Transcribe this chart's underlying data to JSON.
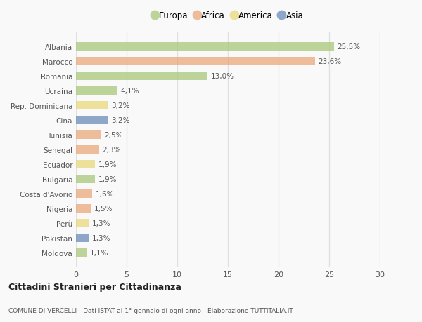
{
  "title": "Cittadini Stranieri per Cittadinanza",
  "subtitle": "COMUNE DI VERCELLI - Dati ISTAT al 1° gennaio di ogni anno - Elaborazione TUTTITALIA.IT",
  "countries": [
    "Albania",
    "Marocco",
    "Romania",
    "Ucraina",
    "Rep. Dominicana",
    "Cina",
    "Tunisia",
    "Senegal",
    "Ecuador",
    "Bulgaria",
    "Costa d'Avorio",
    "Nigeria",
    "Perù",
    "Pakistan",
    "Moldova"
  ],
  "values": [
    25.5,
    23.6,
    13.0,
    4.1,
    3.2,
    3.2,
    2.5,
    2.3,
    1.9,
    1.9,
    1.6,
    1.5,
    1.3,
    1.3,
    1.1
  ],
  "labels": [
    "25,5%",
    "23,6%",
    "13,0%",
    "4,1%",
    "3,2%",
    "3,2%",
    "2,5%",
    "2,3%",
    "1,9%",
    "1,9%",
    "1,6%",
    "1,5%",
    "1,3%",
    "1,3%",
    "1,1%"
  ],
  "colors": [
    "#a8c87a",
    "#e8a87c",
    "#a8c87a",
    "#a8c87a",
    "#e8d87a",
    "#6b8cba",
    "#e8a87c",
    "#e8a87c",
    "#e8d87a",
    "#a8c87a",
    "#e8a87c",
    "#e8a87c",
    "#e8d87a",
    "#6b8cba",
    "#a8c87a"
  ],
  "legend": [
    {
      "label": "Europa",
      "color": "#a8c87a"
    },
    {
      "label": "Africa",
      "color": "#e8a87c"
    },
    {
      "label": "America",
      "color": "#e8d87a"
    },
    {
      "label": "Asia",
      "color": "#6b8cba"
    }
  ],
  "xlim": [
    0,
    30
  ],
  "xticks": [
    0,
    5,
    10,
    15,
    20,
    25,
    30
  ],
  "background_color": "#f9f9f9",
  "grid_color": "#e0e0e0",
  "bar_alpha": 0.75,
  "bar_height": 0.55
}
